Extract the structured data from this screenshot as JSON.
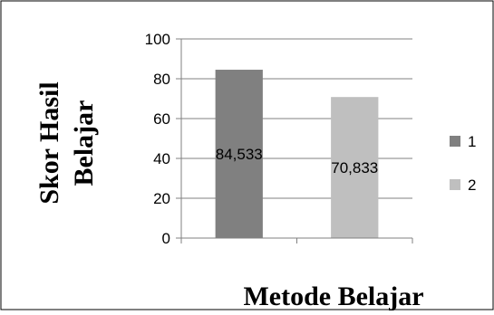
{
  "chart_data": {
    "type": "bar",
    "categories": [
      "1",
      "2"
    ],
    "values": [
      84.533,
      70.833
    ],
    "data_labels": [
      "84,533",
      "70,833"
    ],
    "colors": [
      "#808080",
      "#bfbfbf"
    ],
    "ylim": [
      0,
      100
    ],
    "yticks": [
      0,
      20,
      40,
      60,
      80,
      100
    ],
    "xlabel": "Metode Belajar",
    "ylabel": [
      "Skor Hasil",
      "Belajar"
    ],
    "legend": {
      "entries": [
        "1",
        "2"
      ],
      "placement": "right"
    },
    "grid": true
  }
}
